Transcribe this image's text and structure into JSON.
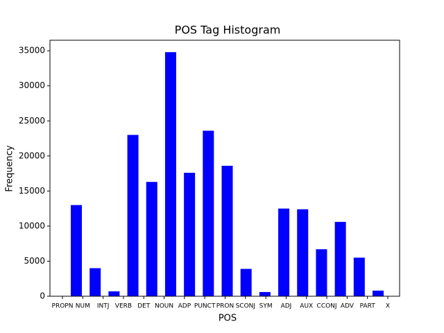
{
  "chart_data": {
    "type": "bar",
    "title": "POS Tag Histogram",
    "x_label": "POS",
    "y_label": "Frequency",
    "categories": [
      "PROPN",
      "NUM",
      "INTJ",
      "VERB",
      "DET",
      "NOUN",
      "ADP",
      "PUNCT",
      "PRON",
      "SCONJ",
      "SYM",
      "ADJ",
      "AUX",
      "CCONJ",
      "ADV",
      "PART",
      "X"
    ],
    "values": [
      13000,
      4000,
      700,
      23000,
      16300,
      34800,
      17600,
      23600,
      18600,
      3900,
      600,
      12500,
      12400,
      6700,
      10600,
      5500,
      800
    ],
    "color": "#0000ff",
    "ylim": [
      0,
      36500
    ],
    "yticks": [
      0,
      5000,
      10000,
      15000,
      20000,
      25000,
      30000,
      35000
    ],
    "grid": false
  }
}
